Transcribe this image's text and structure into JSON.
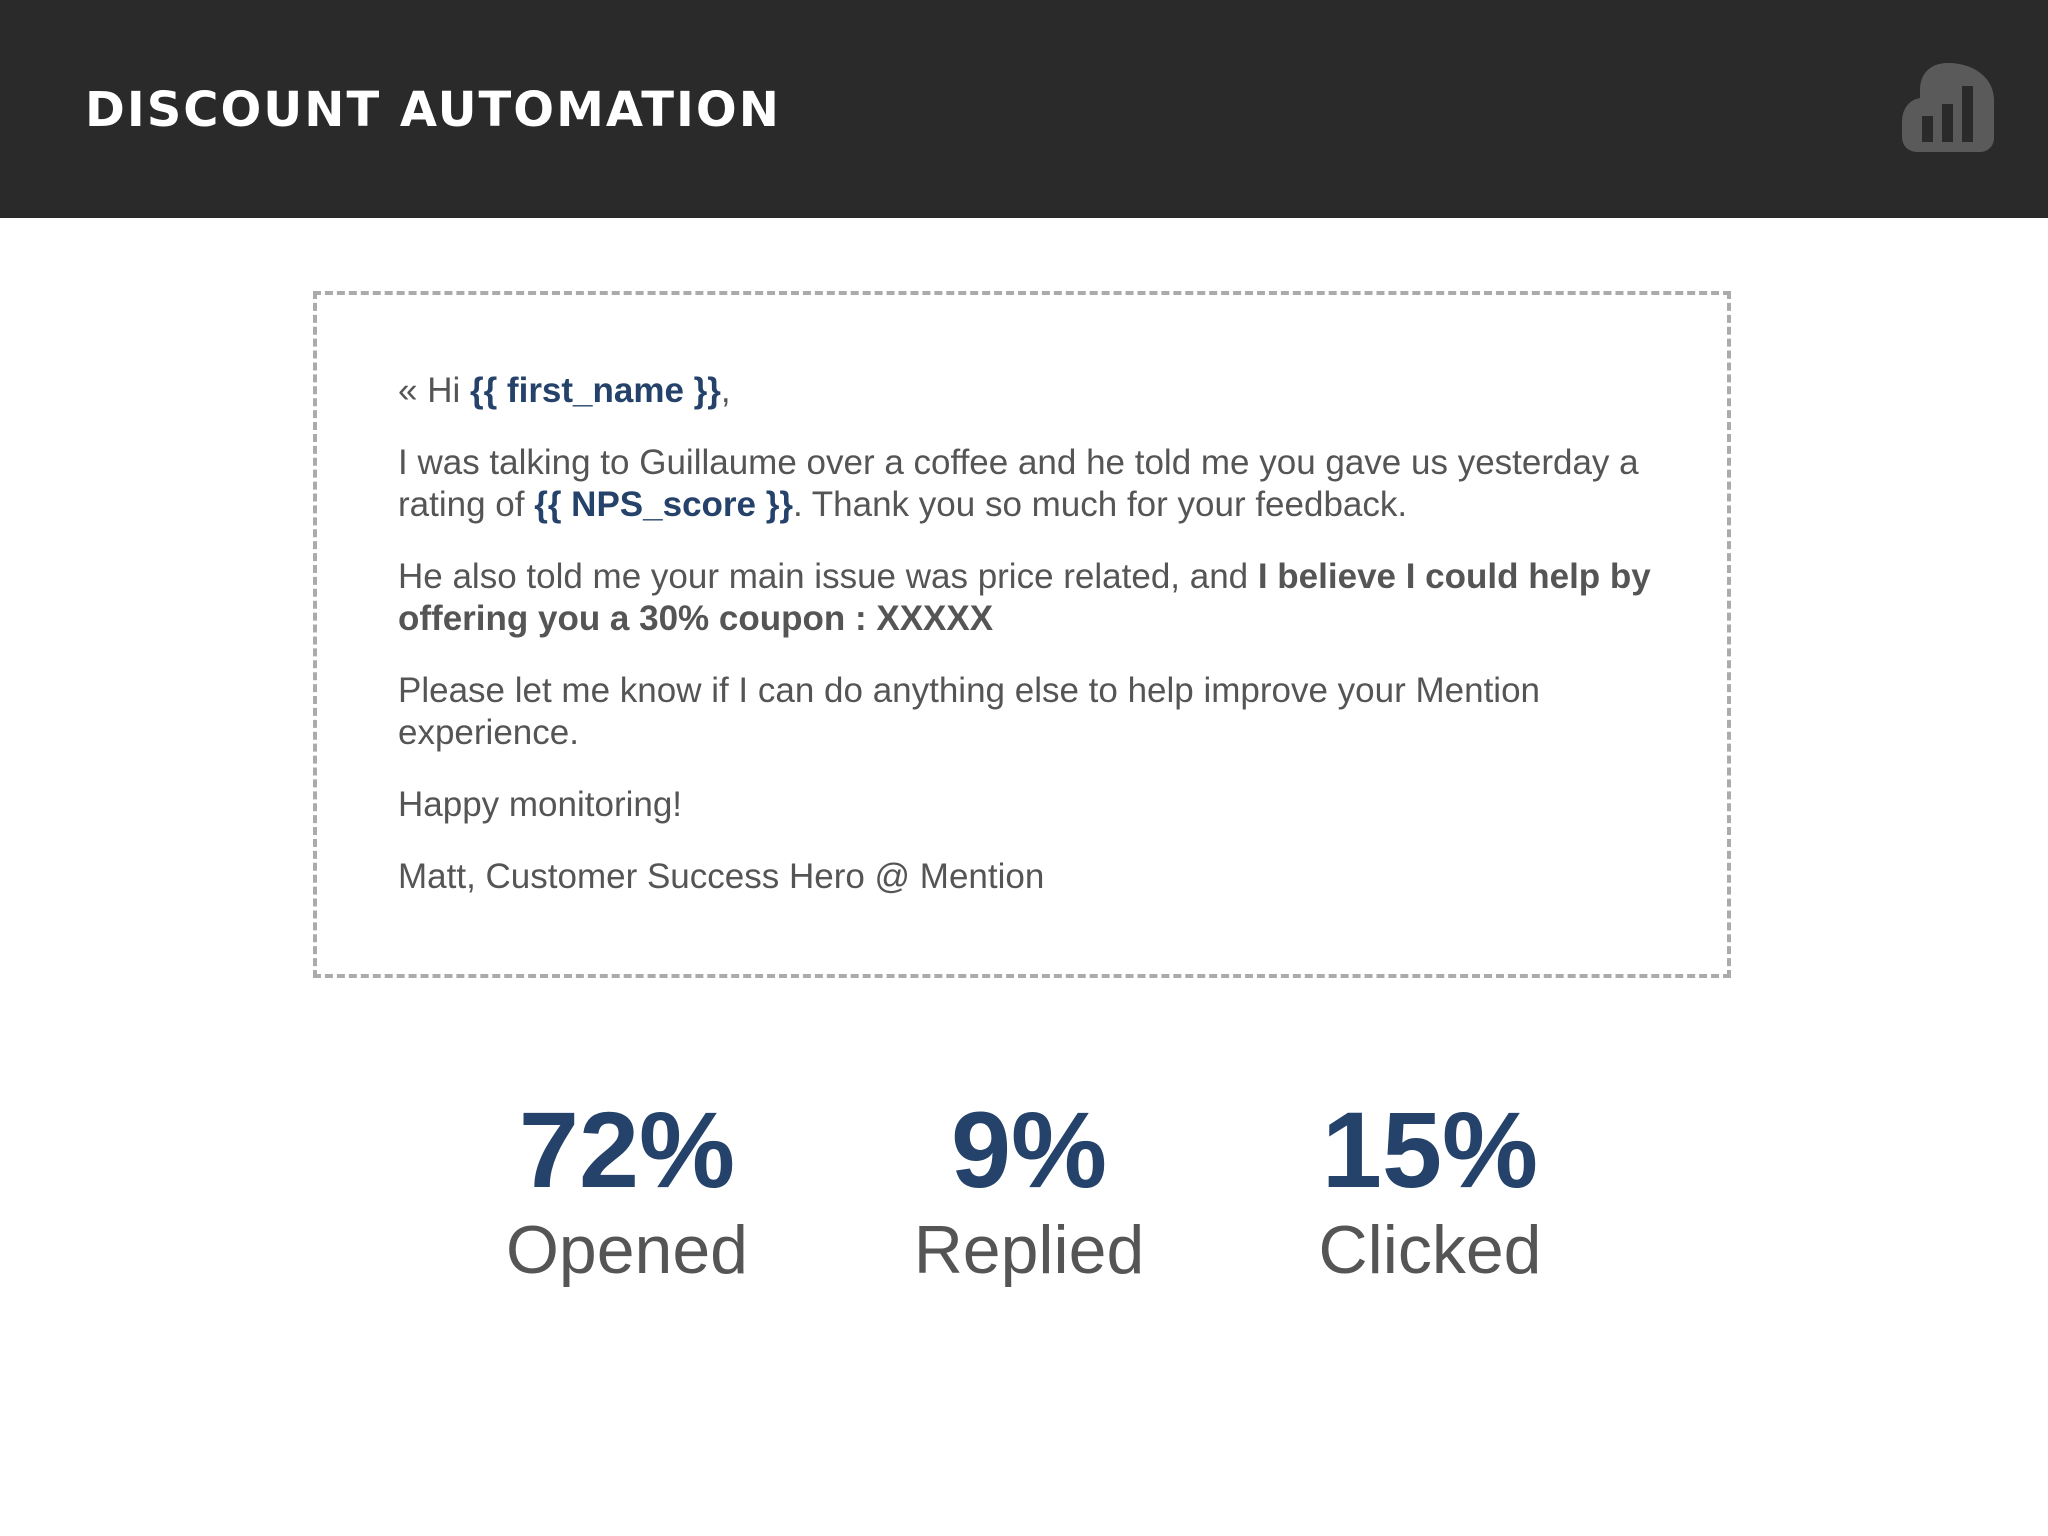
{
  "header": {
    "title": "DISCOUNT AUTOMATION",
    "logo_icon": "bar-chart-speech-bubble-icon"
  },
  "email": {
    "greeting_prefix": "« Hi ",
    "greeting_var": "{{ first_name }}",
    "greeting_suffix": ",",
    "p1_part1": "I was talking to Guillaume over a coffee and he told me you gave us yesterday a rating of ",
    "p1_var": "{{ NPS_score }}",
    "p1_part2": ". Thank you so much for your feedback.",
    "p2_part1": "He also told me your main issue was price related, and ",
    "p2_bold": "I believe I could help by offering you a 30% coupon : XXXXX",
    "p3": "Please let me know if I can do anything else to help improve your Mention experience.",
    "p4": "Happy monitoring!",
    "signature": "Matt, Customer Success Hero @ Mention"
  },
  "stats": [
    {
      "value": "72%",
      "label": "Opened"
    },
    {
      "value": "9%",
      "label": "Replied"
    },
    {
      "value": "15%",
      "label": "Clicked"
    }
  ],
  "colors": {
    "header_bg": "#2a2a2a",
    "accent": "#24426a",
    "body_text": "#555555",
    "logo": "#5a5a5a"
  }
}
